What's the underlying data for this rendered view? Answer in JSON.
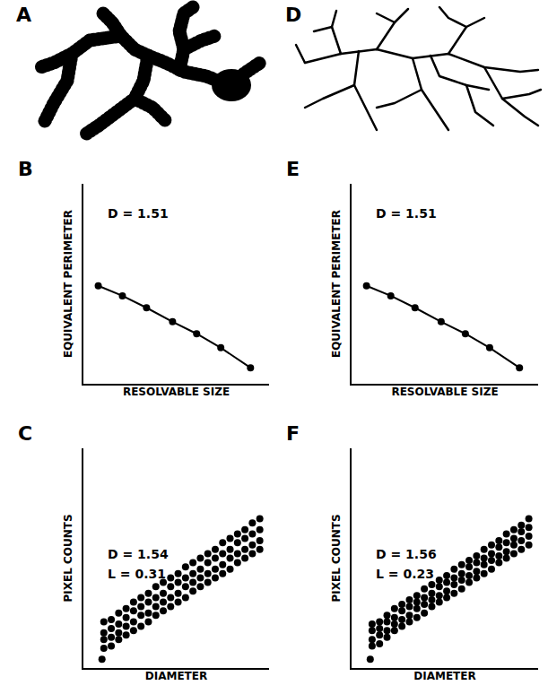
{
  "images": [
    {
      "panel": "A"
    },
    {
      "panel": "D"
    }
  ],
  "chart_data": [
    {
      "type": "scatter",
      "panel": "B",
      "annotations": [
        "D = 1.51"
      ],
      "xlabel": "RESOLVABLE SIZE",
      "ylabel": "EQUIVALENT PERIMETER",
      "x": [
        0.8,
        2.1,
        3.4,
        4.8,
        6.1,
        7.4,
        9.0
      ],
      "values": [
        4.9,
        4.4,
        3.8,
        3.1,
        2.5,
        1.8,
        0.8
      ],
      "xlim": [
        0,
        10
      ],
      "ylim": [
        0,
        10
      ],
      "tick_labels": false,
      "color": "#000000",
      "marker": "circle",
      "line_style": "solid"
    },
    {
      "type": "scatter",
      "panel": "E",
      "annotations": [
        "D = 1.51"
      ],
      "xlabel": "RESOLVABLE SIZE",
      "ylabel": "EQUIVALENT PERIMETER",
      "x": [
        0.8,
        2.1,
        3.4,
        4.8,
        6.1,
        7.4,
        9.0
      ],
      "values": [
        4.9,
        4.4,
        3.8,
        3.1,
        2.5,
        1.8,
        0.8
      ],
      "xlim": [
        0,
        10
      ],
      "ylim": [
        0,
        10
      ],
      "tick_labels": false,
      "color": "#000000",
      "marker": "circle",
      "line_style": "solid"
    },
    {
      "type": "scatter",
      "panel": "C",
      "annotations": [
        "D = 1.54",
        "L = 0.31"
      ],
      "xlabel": "DIAMETER",
      "ylabel": "PIXEL COUNTS",
      "x": [
        1.0,
        1.1,
        1.1,
        1.1,
        1.1,
        1.5,
        1.5,
        1.5,
        1.5,
        1.9,
        1.9,
        1.9,
        1.9,
        2.3,
        2.3,
        2.3,
        2.3,
        2.7,
        2.7,
        2.7,
        2.7,
        3.1,
        3.1,
        3.1,
        3.1,
        3.5,
        3.5,
        3.5,
        3.5,
        3.9,
        3.9,
        3.9,
        3.9,
        4.3,
        4.3,
        4.3,
        4.3,
        4.7,
        4.7,
        4.7,
        4.7,
        5.1,
        5.1,
        5.1,
        5.1,
        5.5,
        5.5,
        5.5,
        5.5,
        5.9,
        5.9,
        5.9,
        5.9,
        6.3,
        6.3,
        6.3,
        6.3,
        6.7,
        6.7,
        6.7,
        6.7,
        7.1,
        7.1,
        7.1,
        7.1,
        7.5,
        7.5,
        7.5,
        7.5,
        7.9,
        7.9,
        7.9,
        7.9,
        8.3,
        8.3,
        8.3,
        8.3,
        8.7,
        8.7,
        8.7,
        8.7,
        9.1,
        9.1,
        9.1,
        9.1,
        9.5,
        9.5,
        9.5,
        9.5
      ],
      "values": [
        0.4,
        0.9,
        1.3,
        1.6,
        2.1,
        1.0,
        1.4,
        1.8,
        2.2,
        1.3,
        1.6,
        2.0,
        2.5,
        1.5,
        1.9,
        2.3,
        2.7,
        1.7,
        2.1,
        2.6,
        3.0,
        1.9,
        2.4,
        2.8,
        3.2,
        2.1,
        2.5,
        3.0,
        3.4,
        2.4,
        2.8,
        3.2,
        3.7,
        2.6,
        3.0,
        3.4,
        3.9,
        2.8,
        3.2,
        3.7,
        4.1,
        3.0,
        3.4,
        3.9,
        4.3,
        3.2,
        3.7,
        4.1,
        4.6,
        3.5,
        3.9,
        4.3,
        4.8,
        3.7,
        4.1,
        4.5,
        5.0,
        3.9,
        4.3,
        4.8,
        5.2,
        4.1,
        4.5,
        5.0,
        5.4,
        4.3,
        4.7,
        5.2,
        5.7,
        4.5,
        5.0,
        5.4,
        5.9,
        4.8,
        5.2,
        5.7,
        6.1,
        5.0,
        5.4,
        5.9,
        6.3,
        5.2,
        5.6,
        6.1,
        6.6,
        5.4,
        5.8,
        6.3,
        6.8
      ],
      "xlim": [
        0,
        10
      ],
      "ylim": [
        0,
        10
      ],
      "tick_labels": false,
      "color": "#000000",
      "marker": "circle",
      "line_style": "none"
    },
    {
      "type": "scatter",
      "panel": "F",
      "annotations": [
        "D = 1.56",
        "L = 0.23"
      ],
      "xlabel": "DIAMETER",
      "ylabel": "PIXEL COUNTS",
      "x": [
        1.0,
        1.1,
        1.1,
        1.1,
        1.1,
        1.5,
        1.5,
        1.5,
        1.5,
        1.9,
        1.9,
        1.9,
        1.9,
        2.3,
        2.3,
        2.3,
        2.3,
        2.7,
        2.7,
        2.7,
        2.7,
        3.1,
        3.1,
        3.1,
        3.1,
        3.5,
        3.5,
        3.5,
        3.5,
        3.9,
        3.9,
        3.9,
        3.9,
        4.3,
        4.3,
        4.3,
        4.3,
        4.7,
        4.7,
        4.7,
        4.7,
        5.1,
        5.1,
        5.1,
        5.1,
        5.5,
        5.5,
        5.5,
        5.5,
        5.9,
        5.9,
        5.9,
        5.9,
        6.3,
        6.3,
        6.3,
        6.3,
        6.7,
        6.7,
        6.7,
        6.7,
        7.1,
        7.1,
        7.1,
        7.1,
        7.5,
        7.5,
        7.5,
        7.5,
        7.9,
        7.9,
        7.9,
        7.9,
        8.3,
        8.3,
        8.3,
        8.3,
        8.7,
        8.7,
        8.7,
        8.7,
        9.1,
        9.1,
        9.1,
        9.1,
        9.5,
        9.5,
        9.5,
        9.5
      ],
      "values": [
        0.4,
        1.0,
        1.3,
        1.7,
        2.0,
        1.1,
        1.5,
        1.8,
        2.1,
        1.4,
        1.7,
        2.1,
        2.4,
        1.7,
        2.0,
        2.3,
        2.7,
        1.9,
        2.2,
        2.6,
        2.9,
        2.1,
        2.4,
        2.8,
        3.1,
        2.3,
        2.7,
        3.0,
        3.3,
        2.5,
        2.9,
        3.2,
        3.6,
        2.8,
        3.1,
        3.4,
        3.8,
        3.0,
        3.3,
        3.7,
        4.0,
        3.2,
        3.5,
        3.9,
        4.2,
        3.4,
        3.8,
        4.1,
        4.5,
        3.6,
        4.0,
        4.3,
        4.7,
        3.9,
        4.2,
        4.6,
        4.9,
        4.1,
        4.4,
        4.8,
        5.1,
        4.3,
        4.7,
        5.0,
        5.4,
        4.5,
        4.9,
        5.2,
        5.6,
        4.8,
        5.1,
        5.5,
        5.8,
        5.0,
        5.3,
        5.7,
        6.1,
        5.2,
        5.6,
        5.9,
        6.3,
        5.4,
        5.8,
        6.2,
        6.5,
        5.6,
        6.0,
        6.4,
        6.8
      ],
      "xlim": [
        0,
        10
      ],
      "ylim": [
        0,
        10
      ],
      "tick_labels": false,
      "color": "#000000",
      "marker": "circle",
      "line_style": "none"
    }
  ]
}
